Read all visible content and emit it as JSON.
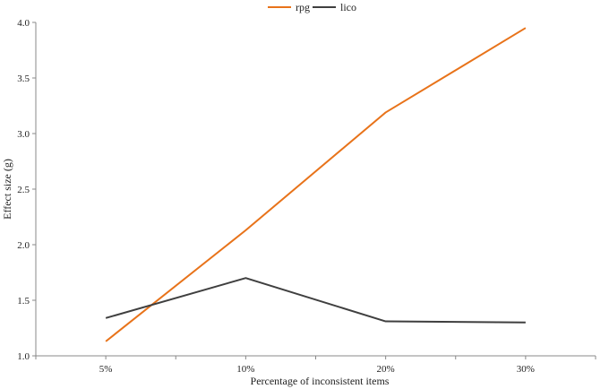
{
  "chart_data": {
    "type": "line",
    "categories": [
      "5%",
      "10%",
      "20%",
      "30%"
    ],
    "series": [
      {
        "name": "rpg",
        "color": "#E8731A",
        "values": [
          1.13,
          2.13,
          3.19,
          3.95
        ]
      },
      {
        "name": "lico",
        "color": "#3F3F3F",
        "values": [
          1.34,
          1.7,
          1.31,
          1.3
        ]
      }
    ],
    "xlabel": "Percentage of inconsistent items",
    "ylabel": "Effect size (g)",
    "ylim": [
      1.0,
      4.0
    ],
    "yticks": [
      "1.0",
      "1.5",
      "2.0",
      "2.5",
      "3.0",
      "3.5",
      "4.0"
    ],
    "grid": false,
    "legend_position": "top-center"
  }
}
